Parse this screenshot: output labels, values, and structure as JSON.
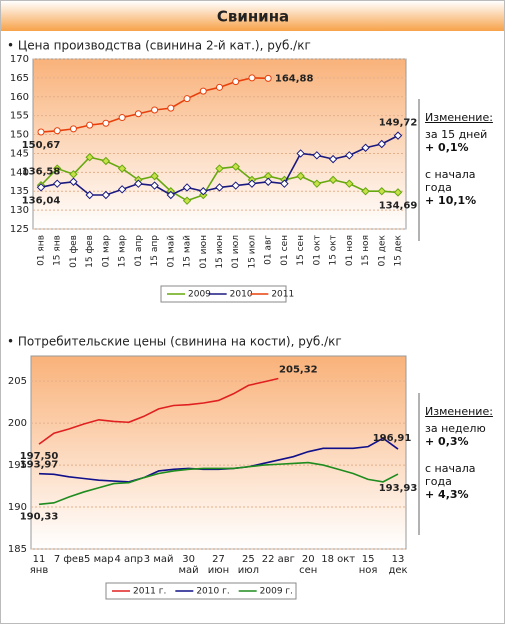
{
  "header": {
    "title": "Свинина"
  },
  "chart_data": [
    {
      "type": "line",
      "title": "• Цена производства (свинина 2-й кат.), руб./кг",
      "categories": [
        "01 янв",
        "15 янв",
        "01 фев",
        "15 фев",
        "01 мар",
        "15 мар",
        "01 апр",
        "15 апр",
        "01 май",
        "15 май",
        "01 июн",
        "15 июн",
        "01 июл",
        "15 июл",
        "01 авг",
        "01 сен",
        "15 сен",
        "01 окт",
        "15 окт",
        "01 ноя",
        "15 ноя",
        "01 дек",
        "15 дек"
      ],
      "series": [
        {
          "name": "2009",
          "color": "#66a80f",
          "values": [
            136.58,
            141,
            139.5,
            144,
            143,
            141,
            138,
            139,
            135,
            132.5,
            134,
            141,
            141.5,
            138,
            139,
            138,
            139,
            137,
            138,
            137,
            135,
            135,
            134.69
          ],
          "value_labels": [
            "136,58",
            null,
            null,
            null,
            null,
            null,
            null,
            null,
            null,
            null,
            null,
            null,
            null,
            null,
            null,
            null,
            null,
            null,
            null,
            null,
            null,
            null,
            "134,69"
          ]
        },
        {
          "name": "2010",
          "color": "#1a1a80",
          "values": [
            136.04,
            137,
            137.5,
            134,
            134,
            135.5,
            137,
            136.5,
            134,
            136,
            135,
            136,
            136.5,
            137,
            137.5,
            137,
            145,
            144.5,
            143.5,
            144.5,
            146.5,
            147.5,
            149.72
          ],
          "value_labels": [
            "136,04",
            null,
            null,
            null,
            null,
            null,
            null,
            null,
            null,
            null,
            null,
            null,
            null,
            null,
            null,
            null,
            null,
            null,
            null,
            null,
            null,
            null,
            "149,72"
          ]
        },
        {
          "name": "2011",
          "color": "#e8400c",
          "values": [
            150.67,
            151,
            151.5,
            152.5,
            153,
            154.5,
            155.5,
            156.5,
            157,
            159.5,
            161.5,
            162.5,
            164,
            165,
            164.88,
            null,
            null,
            null,
            null,
            null,
            null,
            null,
            null
          ],
          "value_labels": [
            "150,67",
            null,
            null,
            null,
            null,
            null,
            null,
            null,
            null,
            null,
            null,
            null,
            null,
            null,
            "164,88",
            null,
            null,
            null,
            null,
            null,
            null,
            null,
            null
          ]
        }
      ],
      "ylim": [
        125,
        170
      ],
      "yticks": [
        125,
        130,
        135,
        140,
        145,
        150,
        155,
        160,
        165,
        170
      ],
      "grid": true,
      "annotations": [
        "Изменение:",
        "за 15 дней",
        "+ 0,1%",
        "с начала года",
        "+ 10,1%"
      ]
    },
    {
      "type": "line",
      "title": "• Потребительские цены (свинина на кости), руб./кг",
      "categories": [
        "11 янв",
        null,
        "7 фев",
        null,
        "5 мар",
        null,
        "4 апр",
        null,
        "3 май",
        null,
        "30 май",
        null,
        "27 июн",
        null,
        "25 июл",
        null,
        "22 авг",
        null,
        "20 сен",
        null,
        "18 окт",
        null,
        "15 ноя",
        null,
        "13 дек"
      ],
      "series": [
        {
          "name": "2011 г.",
          "color": "#e02020",
          "values": [
            197.5,
            198.8,
            199.3,
            199.9,
            200.4,
            200.2,
            200.1,
            200.8,
            201.7,
            202.1,
            202.2,
            202.4,
            202.7,
            203.5,
            204.5,
            204.9,
            205.32,
            null,
            null,
            null,
            null,
            null,
            null,
            null,
            null
          ],
          "value_labels": [
            "197,50",
            null,
            null,
            null,
            null,
            null,
            null,
            null,
            null,
            null,
            null,
            null,
            null,
            null,
            null,
            null,
            "205,32",
            null,
            null,
            null,
            null,
            null,
            null,
            null,
            null
          ]
        },
        {
          "name": "2010 г.",
          "color": "#10108a",
          "values": [
            193.97,
            193.9,
            193.6,
            193.4,
            193.2,
            193.1,
            193.0,
            193.5,
            194.3,
            194.5,
            194.6,
            194.5,
            194.5,
            194.6,
            194.8,
            195.2,
            195.6,
            196.0,
            196.6,
            197.0,
            197.0,
            197.0,
            197.2,
            198.2,
            196.91
          ],
          "value_labels": [
            "193,97",
            null,
            null,
            null,
            null,
            null,
            null,
            null,
            null,
            null,
            null,
            null,
            null,
            null,
            null,
            null,
            null,
            null,
            null,
            null,
            null,
            null,
            null,
            null,
            "196,91"
          ]
        },
        {
          "name": "2009 г.",
          "color": "#1e8c1e",
          "values": [
            190.33,
            190.5,
            191.2,
            191.8,
            192.3,
            192.8,
            192.9,
            193.5,
            194.0,
            194.3,
            194.5,
            194.6,
            194.6,
            194.6,
            194.8,
            195.0,
            195.1,
            195.2,
            195.3,
            195.0,
            194.5,
            194.0,
            193.3,
            193.0,
            193.93
          ],
          "value_labels": [
            "190,33",
            null,
            null,
            null,
            null,
            null,
            null,
            null,
            null,
            null,
            null,
            null,
            null,
            null,
            null,
            null,
            null,
            null,
            null,
            null,
            null,
            null,
            null,
            null,
            "193,93"
          ]
        }
      ],
      "ylim": [
        185,
        208
      ],
      "yticks": [
        185,
        190,
        195,
        200,
        205
      ],
      "grid": true,
      "annotations": [
        "Изменение:",
        "за неделю",
        "+ 0,3%",
        "с начала года",
        "+ 4,3%"
      ]
    }
  ]
}
